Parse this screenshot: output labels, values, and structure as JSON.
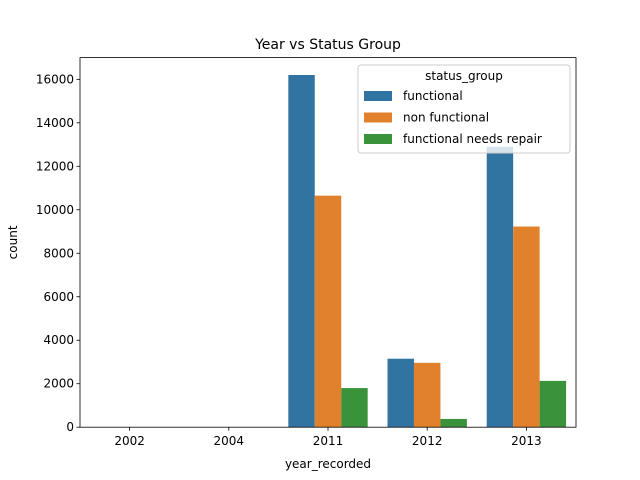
{
  "chart_data": {
    "type": "bar",
    "title": "Year vs Status Group",
    "xlabel": "year_recorded",
    "ylabel": "count",
    "categories": [
      "2002",
      "2004",
      "2011",
      "2012",
      "2013"
    ],
    "ylim": [
      0,
      17000
    ],
    "yticks": [
      0,
      2000,
      4000,
      6000,
      8000,
      10000,
      12000,
      14000,
      16000
    ],
    "legend": {
      "title": "status_group",
      "placement": "upper-right"
    },
    "series": [
      {
        "name": "functional",
        "color": "#3274a1",
        "values": [
          1,
          0,
          16200,
          3150,
          12900
        ]
      },
      {
        "name": "non functional",
        "color": "#e1812c",
        "values": [
          0,
          1,
          10650,
          2960,
          9230
        ]
      },
      {
        "name": "functional needs repair",
        "color": "#3a923a",
        "values": [
          0,
          0,
          1800,
          380,
          2130
        ]
      }
    ]
  }
}
